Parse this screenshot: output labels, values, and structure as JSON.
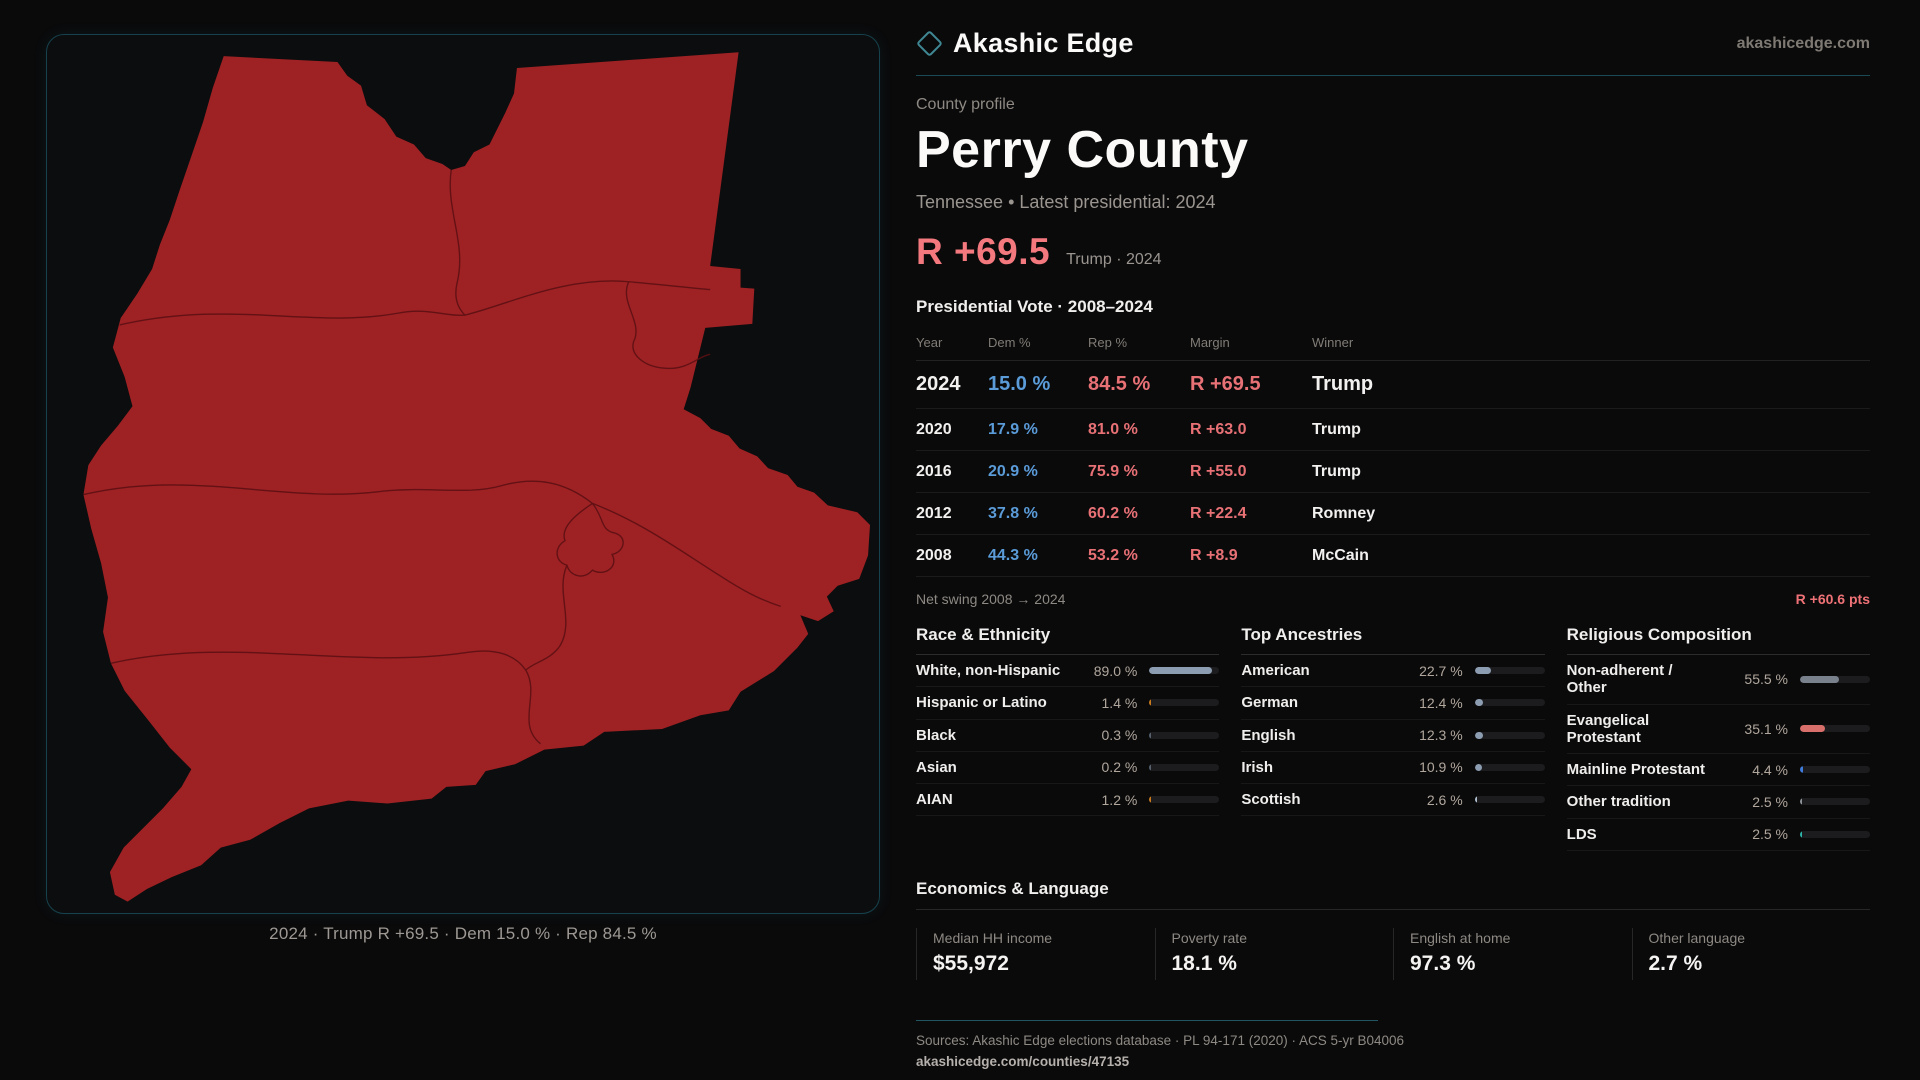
{
  "brand": {
    "name": "Akashic Edge",
    "domain": "akashicedge.com",
    "logo_icon": "diamond-outline-icon"
  },
  "map": {
    "caption": "2024 · Trump R +69.5 · Dem 15.0 % · Rep 84.5 %",
    "fill_color": "#9e2124",
    "boundary_color": "#5c1013",
    "panel_border_color": "#16424d"
  },
  "profile": {
    "kicker": "County profile",
    "title": "Perry County",
    "subtitle": "Tennessee • Latest presidential: 2024",
    "margin_big": "R +69.5",
    "margin_sub": "Trump · 2024"
  },
  "chart_data": {
    "type": "table",
    "title": "Presidential Vote · 2008–2024",
    "columns": [
      "Year",
      "Dem %",
      "Rep %",
      "Margin",
      "Winner"
    ],
    "rows": [
      {
        "year": "2024",
        "dem": "15.0 %",
        "rep": "84.5 %",
        "margin": "R +69.5",
        "winner": "Trump",
        "big": true
      },
      {
        "year": "2020",
        "dem": "17.9 %",
        "rep": "81.0 %",
        "margin": "R +63.0",
        "winner": "Trump",
        "big": false
      },
      {
        "year": "2016",
        "dem": "20.9 %",
        "rep": "75.9 %",
        "margin": "R +55.0",
        "winner": "Trump",
        "big": false
      },
      {
        "year": "2012",
        "dem": "37.8 %",
        "rep": "60.2 %",
        "margin": "R +22.4",
        "winner": "Romney",
        "big": false
      },
      {
        "year": "2008",
        "dem": "44.3 %",
        "rep": "53.2 %",
        "margin": "R +8.9",
        "winner": "McCain",
        "big": false
      }
    ],
    "net_swing_label": "Net swing 2008 → 2024",
    "net_swing_value": "R +60.6 pts",
    "dem_color": "#5a9bd8",
    "rep_color": "#e87176"
  },
  "sections": [
    {
      "title": "Race & Ethnicity",
      "rows": [
        {
          "label": "White, non-Hispanic",
          "value": "89.0 %",
          "pct": 89.0,
          "color": "#8d9db1"
        },
        {
          "label": "Hispanic or Latino",
          "value": "1.4 %",
          "pct": 1.4,
          "color": "#c8791e"
        },
        {
          "label": "Black",
          "value": "0.3 %",
          "pct": 0.3,
          "color": "#55606c"
        },
        {
          "label": "Asian",
          "value": "0.2 %",
          "pct": 0.2,
          "color": "#55606c"
        },
        {
          "label": "AIAN",
          "value": "1.2 %",
          "pct": 1.2,
          "color": "#c8791e"
        }
      ]
    },
    {
      "title": "Top Ancestries",
      "rows": [
        {
          "label": "American",
          "value": "22.7 %",
          "pct": 22.7,
          "color": "#8d9db1"
        },
        {
          "label": "German",
          "value": "12.4 %",
          "pct": 12.4,
          "color": "#8d9db1"
        },
        {
          "label": "English",
          "value": "12.3 %",
          "pct": 12.3,
          "color": "#8d9db1"
        },
        {
          "label": "Irish",
          "value": "10.9 %",
          "pct": 10.9,
          "color": "#8d9db1"
        },
        {
          "label": "Scottish",
          "value": "2.6 %",
          "pct": 2.6,
          "color": "#aebdcd"
        }
      ]
    },
    {
      "title": "Religious Composition",
      "rows": [
        {
          "label": "Non-adherent / Other",
          "value": "55.5 %",
          "pct": 55.5,
          "color": "#79818d"
        },
        {
          "label": "Evangelical Protestant",
          "value": "35.1 %",
          "pct": 35.1,
          "color": "#d96f6a"
        },
        {
          "label": "Mainline Protestant",
          "value": "4.4 %",
          "pct": 4.4,
          "color": "#3e7bda"
        },
        {
          "label": "Other tradition",
          "value": "2.5 %",
          "pct": 2.5,
          "color": "#8d9399"
        },
        {
          "label": "LDS",
          "value": "2.5 %",
          "pct": 2.5,
          "color": "#2cb5a8"
        }
      ]
    }
  ],
  "economics": {
    "title": "Economics & Language",
    "stats": [
      {
        "label": "Median HH income",
        "value": "$55,972"
      },
      {
        "label": "Poverty rate",
        "value": "18.1 %"
      },
      {
        "label": "English at home",
        "value": "97.3 %"
      },
      {
        "label": "Other language",
        "value": "2.7 %"
      }
    ]
  },
  "footer": {
    "sources": "Sources: Akashic Edge elections database · PL 94-171 (2020) · ACS 5-yr B04006",
    "url": "akashicedge.com/counties/47135"
  }
}
